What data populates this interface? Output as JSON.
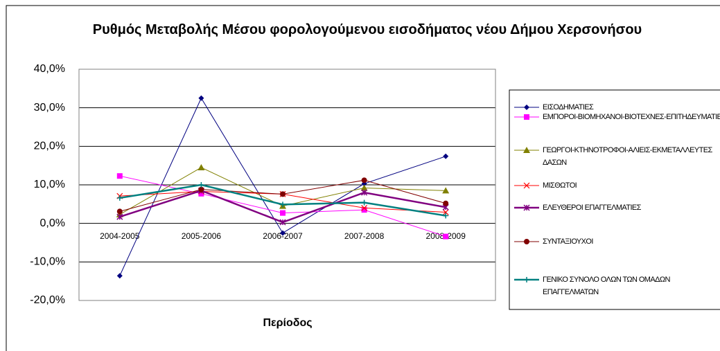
{
  "chart_data": {
    "type": "line",
    "title": "Ρυθμός Μεταβολής Μέσου φορολογούμενου εισοδήματος νέου Δήμου Χερσονήσου",
    "x_label": "Περίοδος",
    "categories": [
      "2004-2005",
      "2005-2006",
      "2006-2007",
      "2007-2008",
      "2008-2009"
    ],
    "ylim": [
      -20,
      40
    ],
    "yticks": [
      {
        "value": -20,
        "label": "-20,0%"
      },
      {
        "value": -10,
        "label": "-10,0%"
      },
      {
        "value": 0,
        "label": "0,0%"
      },
      {
        "value": 10,
        "label": "10,0%"
      },
      {
        "value": 20,
        "label": "20,0%"
      },
      {
        "value": 30,
        "label": "30,0%"
      },
      {
        "value": 40,
        "label": "40,0%"
      }
    ],
    "grid": true,
    "legend": "right",
    "series": [
      {
        "name": "ΕΙΣΟΔΗΜΑΤΙΕΣ",
        "color": "#000080",
        "marker": "diamond",
        "values": [
          -13.6,
          32.5,
          -2.5,
          10.3,
          17.4
        ]
      },
      {
        "name": "ΕΜΠΟΡΟΙ-ΒΙΟΜΗΧΑΝΟΙ-ΒΙΟΤΕΧΝΕΣ-ΕΠΙΤΗΔΕΥΜΑΤΙΕΣ",
        "color": "#ff00ff",
        "marker": "square",
        "values": [
          12.3,
          7.7,
          2.7,
          3.5,
          -3.4
        ]
      },
      {
        "name": "ΓΕΩΡΓΟΙ-ΚΤΗΝΟΤΡΟΦΟΙ-ΑΛΙΕΙΣ-ΕΚΜΕΤΑΛΛΕΥΤΕΣ ΔΑΣΩΝ",
        "color": "#808000",
        "marker": "triangle",
        "values": [
          2.3,
          14.5,
          4.5,
          9.2,
          8.5
        ]
      },
      {
        "name": "ΜΙΣΘΩΤΟΙ",
        "color": "#ff0000",
        "marker": "x",
        "values": [
          7.1,
          8.3,
          7.6,
          4.0,
          2.9
        ]
      },
      {
        "name": "ΕΛΕΥΘΕΡΟΙ ΕΠΑΓΓΕΛΜΑΤΙΕΣ",
        "color": "#800080",
        "marker": "star",
        "values": [
          1.7,
          8.5,
          0.3,
          8.0,
          4.2
        ]
      },
      {
        "name": "ΣΥΝΤΑΞΙΟΥΧΟΙ",
        "color": "#800000",
        "marker": "circle",
        "values": [
          3.1,
          8.8,
          7.6,
          11.2,
          5.2
        ]
      },
      {
        "name": "ΓΕΝΙΚΟ ΣΥΝΟΛΟ ΟΛΩΝ ΤΩΝ ΟΜΑΔΩΝ ΕΠΑΓΓΕΛΜΑΤΩΝ",
        "color": "#008080",
        "marker": "plus",
        "values": [
          6.6,
          10.0,
          4.9,
          5.4,
          2.0
        ]
      }
    ]
  }
}
